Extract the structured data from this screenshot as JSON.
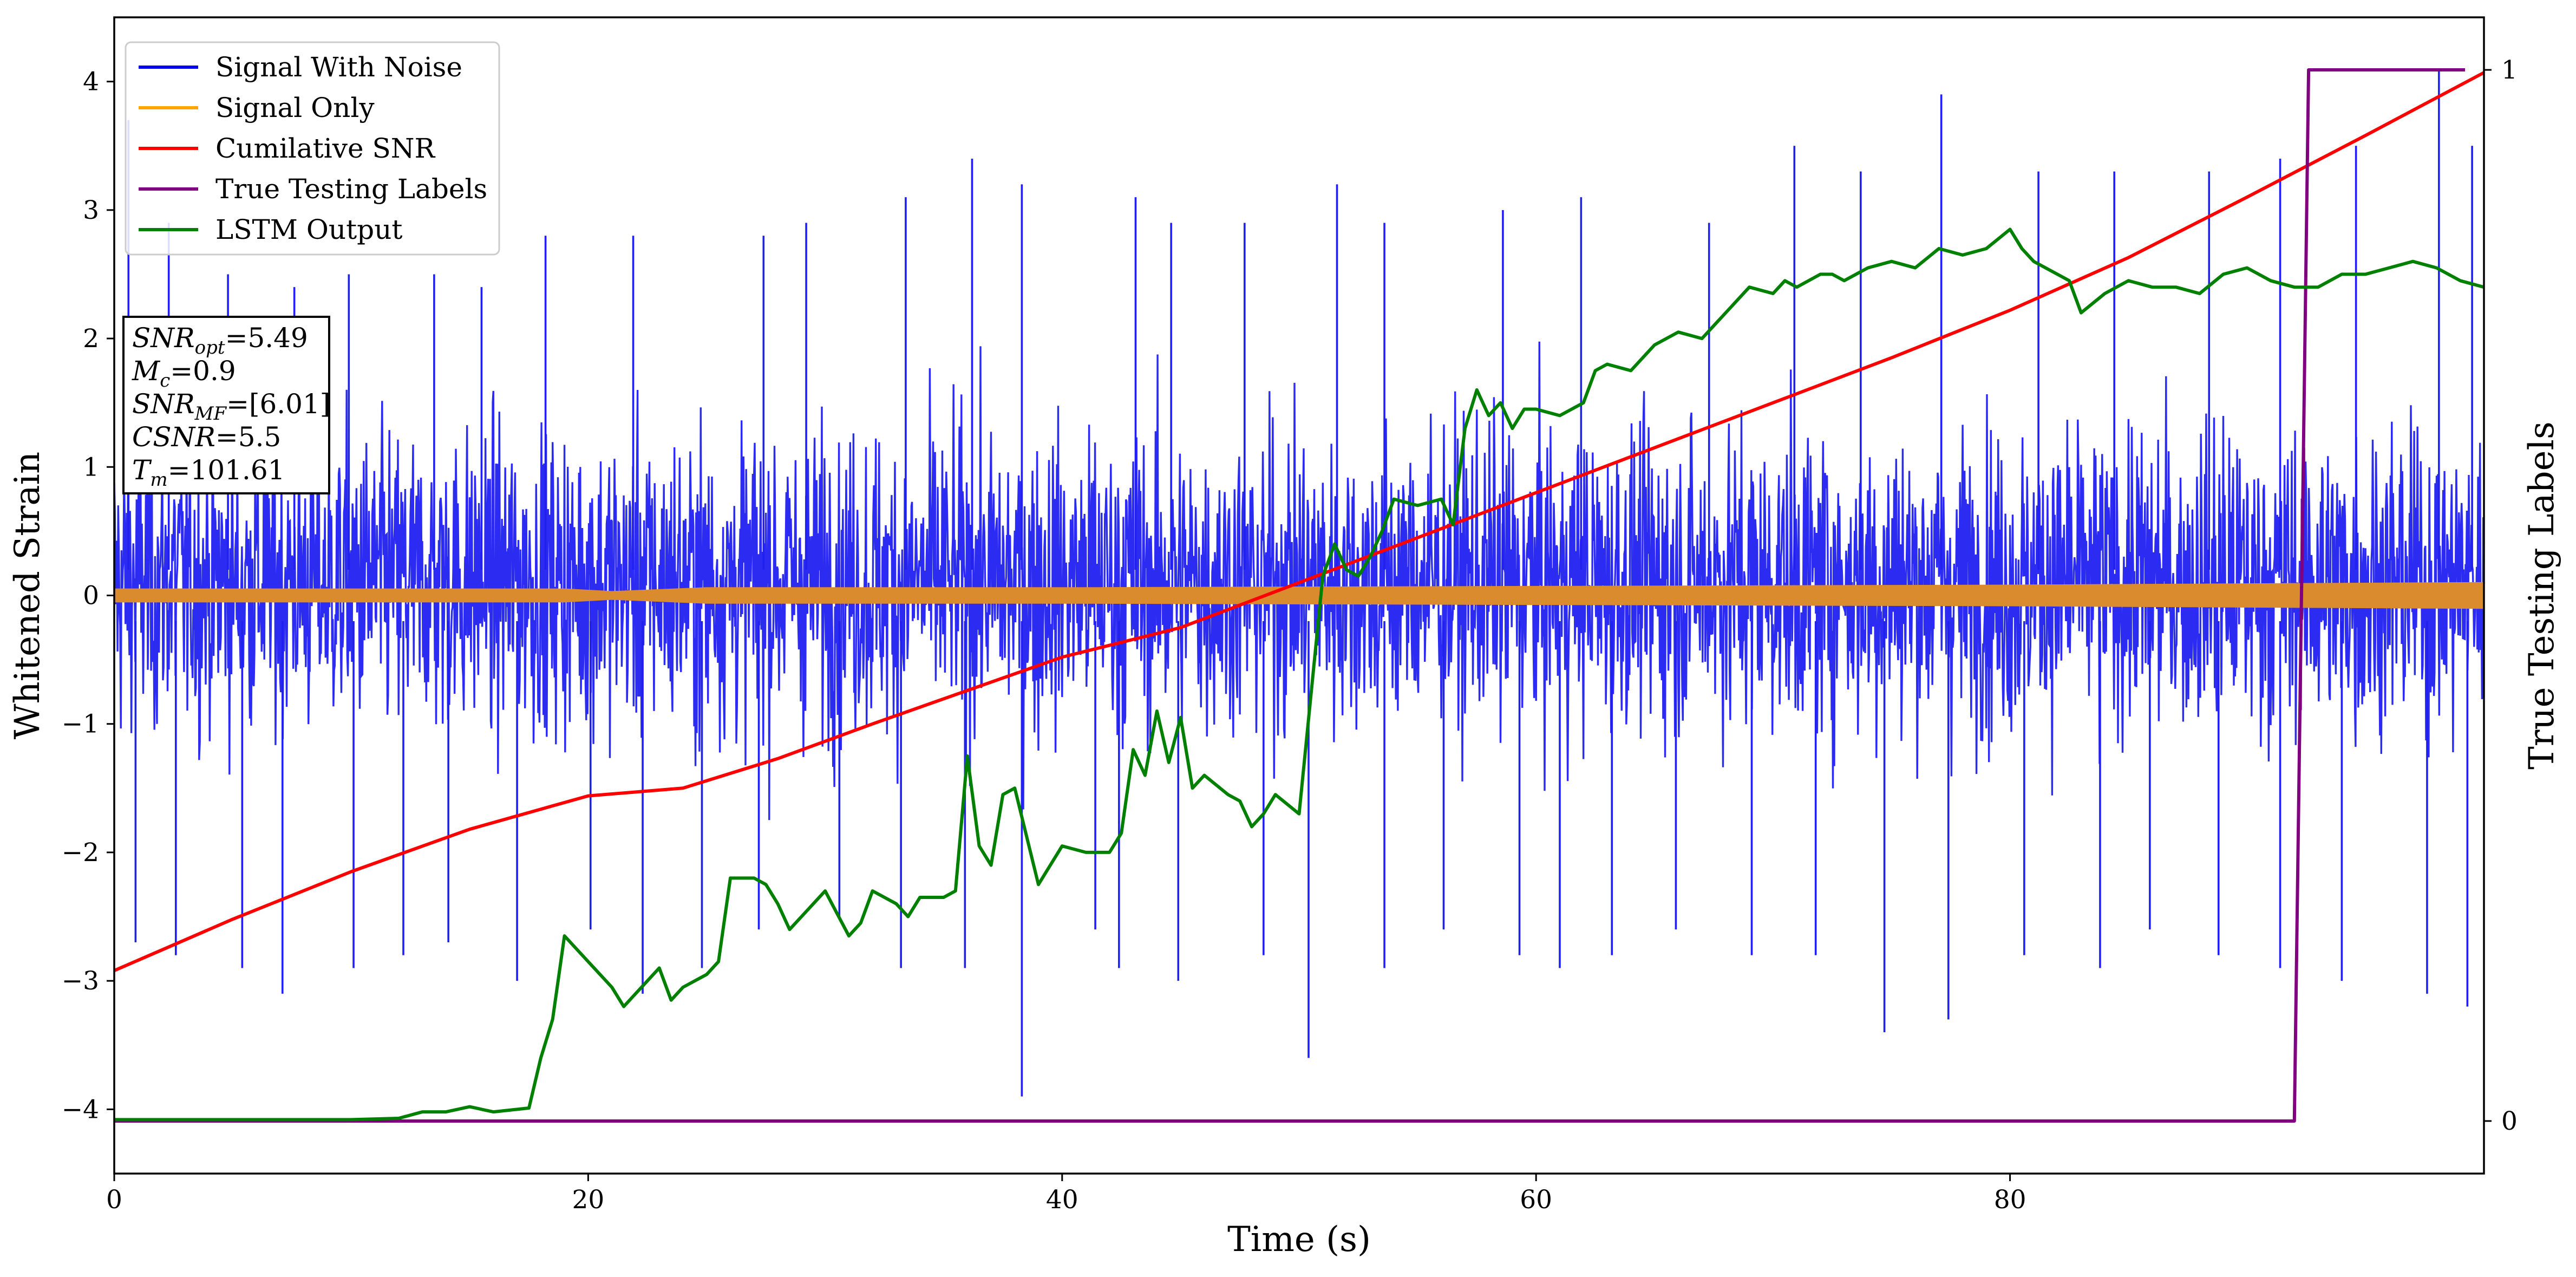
{
  "chart_data": {
    "type": "line",
    "title": "",
    "xlabel": "Time (s)",
    "ylabel": "Whitened Strain",
    "y2label": "True Testing Labels",
    "xlim": [
      0,
      100
    ],
    "ylim": [
      -4.5,
      4.5
    ],
    "y2lim": [
      -0.05,
      1.05
    ],
    "x_ticks": [
      0,
      20,
      40,
      60,
      80
    ],
    "y_ticks": [
      -4,
      -3,
      -2,
      -1,
      0,
      1,
      2,
      3,
      4
    ],
    "y2_ticks": [
      0,
      1
    ],
    "grid": false,
    "legend_position": "upper left",
    "legend": [
      {
        "label": "Signal With Noise",
        "color": "#0000ee"
      },
      {
        "label": "Signal Only",
        "color": "#ffa500"
      },
      {
        "label": "Cumilative SNR",
        "color": "#ff0000"
      },
      {
        "label": "True Testing Labels",
        "color": "#800080"
      },
      {
        "label": "LSTM Output",
        "color": "#008000"
      }
    ],
    "info_box": [
      {
        "var": "SNR",
        "sub": "opt",
        "value": "=5.49"
      },
      {
        "var": "M",
        "sub": "c",
        "value": "=0.9"
      },
      {
        "var": "SNR",
        "sub": "MF",
        "value": "=[6.01]"
      },
      {
        "var": "CSNR",
        "sub": "",
        "value": "=5.5"
      },
      {
        "var": "T",
        "sub": "m",
        "value": "=101.61"
      }
    ],
    "series": [
      {
        "name": "Signal With Noise",
        "color": "#2020f0",
        "kind": "noise",
        "x_range": [
          0,
          100
        ],
        "band": [
          -1.4,
          1.6
        ],
        "spikes": [
          [
            0.6,
            3.7
          ],
          [
            2.3,
            2.9
          ],
          [
            4.8,
            2.5
          ],
          [
            7.6,
            2.4
          ],
          [
            9.9,
            2.5
          ],
          [
            13.5,
            2.5
          ],
          [
            15.5,
            2.4
          ],
          [
            18.2,
            2.8
          ],
          [
            21.9,
            2.8
          ],
          [
            27.4,
            2.8
          ],
          [
            29.2,
            2.9
          ],
          [
            33.4,
            3.1
          ],
          [
            36.2,
            3.4
          ],
          [
            38.3,
            3.2
          ],
          [
            43.1,
            3.1
          ],
          [
            44.6,
            2.9
          ],
          [
            47.7,
            2.9
          ],
          [
            51.6,
            3.2
          ],
          [
            53.6,
            2.9
          ],
          [
            58.6,
            3.0
          ],
          [
            61.9,
            3.1
          ],
          [
            67.3,
            2.9
          ],
          [
            70.9,
            3.5
          ],
          [
            73.7,
            3.3
          ],
          [
            77.1,
            3.9
          ],
          [
            81.2,
            3.3
          ],
          [
            84.4,
            3.3
          ],
          [
            88.4,
            3.3
          ],
          [
            91.4,
            3.4
          ],
          [
            94.6,
            3.5
          ],
          [
            98.1,
            4.1
          ],
          [
            99.5,
            3.5
          ],
          [
            0.9,
            -2.7
          ],
          [
            2.6,
            -2.8
          ],
          [
            5.4,
            -2.9
          ],
          [
            7.1,
            -3.1
          ],
          [
            10.1,
            -2.9
          ],
          [
            12.2,
            -2.8
          ],
          [
            14.1,
            -2.7
          ],
          [
            17.0,
            -3.0
          ],
          [
            20.1,
            -2.6
          ],
          [
            22.3,
            -3.1
          ],
          [
            24.8,
            -2.9
          ],
          [
            27.2,
            -2.6
          ],
          [
            30.6,
            -2.5
          ],
          [
            33.2,
            -2.9
          ],
          [
            35.9,
            -2.9
          ],
          [
            38.3,
            -3.9
          ],
          [
            41.4,
            -2.6
          ],
          [
            42.4,
            -2.9
          ],
          [
            44.9,
            -3.0
          ],
          [
            48.5,
            -2.8
          ],
          [
            50.4,
            -3.6
          ],
          [
            53.6,
            -2.9
          ],
          [
            56.1,
            -2.6
          ],
          [
            59.3,
            -2.8
          ],
          [
            61.0,
            -2.9
          ],
          [
            63.2,
            -2.8
          ],
          [
            65.9,
            -2.6
          ],
          [
            69.1,
            -2.8
          ],
          [
            71.8,
            -2.8
          ],
          [
            74.7,
            -3.4
          ],
          [
            77.4,
            -3.3
          ],
          [
            80.6,
            -2.8
          ],
          [
            83.8,
            -2.9
          ],
          [
            85.9,
            -2.6
          ],
          [
            88.8,
            -2.8
          ],
          [
            91.4,
            -2.9
          ],
          [
            94.0,
            -3.0
          ],
          [
            97.6,
            -3.1
          ],
          [
            99.3,
            -3.2
          ]
        ]
      },
      {
        "name": "Signal Only",
        "color": "#da8b2e",
        "kind": "band",
        "x": [
          0,
          10,
          19,
          21,
          25,
          40,
          60,
          80,
          100
        ],
        "half_width": [
          0.05,
          0.05,
          0.05,
          0.03,
          0.06,
          0.06,
          0.07,
          0.08,
          0.1
        ]
      },
      {
        "name": "Cumilative SNR",
        "color": "#ff0000",
        "axis": "y",
        "x": [
          0,
          5,
          10,
          15,
          20,
          24,
          28,
          32,
          36,
          40,
          45,
          50,
          55,
          60,
          65,
          70,
          75,
          80,
          85,
          90,
          95,
          100
        ],
        "values": [
          -2.92,
          -2.52,
          -2.15,
          -1.82,
          -1.56,
          -1.5,
          -1.27,
          -1.0,
          -0.74,
          -0.48,
          -0.25,
          0.1,
          0.45,
          0.8,
          1.15,
          1.5,
          1.85,
          2.22,
          2.63,
          3.1,
          3.58,
          4.07
        ]
      },
      {
        "name": "True Testing Labels",
        "color": "#800080",
        "axis": "y2",
        "x": [
          0,
          92.0,
          92.6,
          99.2
        ],
        "values": [
          0,
          0,
          1,
          1
        ]
      },
      {
        "name": "LSTM Output",
        "color": "#008000",
        "axis": "y",
        "x": [
          0,
          10,
          12,
          13,
          14,
          15,
          16,
          17,
          17.5,
          18,
          18.5,
          19,
          20,
          21,
          21.5,
          22,
          22.5,
          23,
          23.5,
          24,
          25,
          25.5,
          26,
          27,
          27.5,
          28,
          28.5,
          29,
          30,
          31,
          31.5,
          32,
          33,
          33.5,
          34,
          35,
          35.5,
          36,
          36.5,
          37,
          37.5,
          38,
          39,
          39.5,
          40,
          41,
          42,
          42.5,
          43,
          43.5,
          44,
          44.5,
          45,
          45.5,
          46,
          47,
          47.5,
          48,
          48.5,
          49,
          50,
          51,
          51.5,
          52,
          52.5,
          53,
          53.5,
          54,
          55,
          56,
          56.5,
          57,
          57.5,
          58,
          58.5,
          59,
          59.5,
          60,
          61,
          62,
          62.5,
          63,
          64,
          65,
          66,
          67,
          67.5,
          68,
          69,
          70,
          70.5,
          71,
          72,
          72.5,
          73,
          74,
          75,
          76,
          77,
          78,
          79,
          80,
          80.5,
          81,
          82,
          82.5,
          83,
          84,
          85,
          86,
          87,
          88,
          89,
          90,
          91,
          92,
          93,
          94,
          95,
          96,
          97,
          98,
          99,
          100
        ],
        "values": [
          -4.08,
          -4.08,
          -4.07,
          -4.02,
          -4.02,
          -3.98,
          -4.02,
          -4.0,
          -3.99,
          -3.6,
          -3.3,
          -2.65,
          -2.85,
          -3.05,
          -3.2,
          -3.1,
          -3.0,
          -2.9,
          -3.15,
          -3.05,
          -2.95,
          -2.85,
          -2.2,
          -2.2,
          -2.25,
          -2.4,
          -2.6,
          -2.5,
          -2.3,
          -2.65,
          -2.55,
          -2.3,
          -2.4,
          -2.5,
          -2.35,
          -2.35,
          -2.3,
          -1.25,
          -1.95,
          -2.1,
          -1.55,
          -1.5,
          -2.25,
          -2.1,
          -1.95,
          -2.0,
          -2.0,
          -1.85,
          -1.2,
          -1.4,
          -0.9,
          -1.3,
          -0.95,
          -1.5,
          -1.4,
          -1.55,
          -1.6,
          -1.8,
          -1.7,
          -1.55,
          -1.7,
          0.15,
          0.4,
          0.2,
          0.15,
          0.3,
          0.5,
          0.75,
          0.7,
          0.75,
          0.55,
          1.3,
          1.6,
          1.4,
          1.5,
          1.3,
          1.45,
          1.45,
          1.4,
          1.5,
          1.75,
          1.8,
          1.75,
          1.95,
          2.05,
          2.0,
          2.1,
          2.2,
          2.4,
          2.35,
          2.45,
          2.4,
          2.5,
          2.5,
          2.45,
          2.55,
          2.6,
          2.55,
          2.7,
          2.65,
          2.7,
          2.85,
          2.7,
          2.6,
          2.5,
          2.45,
          2.2,
          2.35,
          2.45,
          2.4,
          2.4,
          2.35,
          2.5,
          2.55,
          2.45,
          2.4,
          2.4,
          2.5,
          2.5,
          2.55,
          2.6,
          2.55,
          2.45,
          2.4
        ]
      }
    ]
  }
}
